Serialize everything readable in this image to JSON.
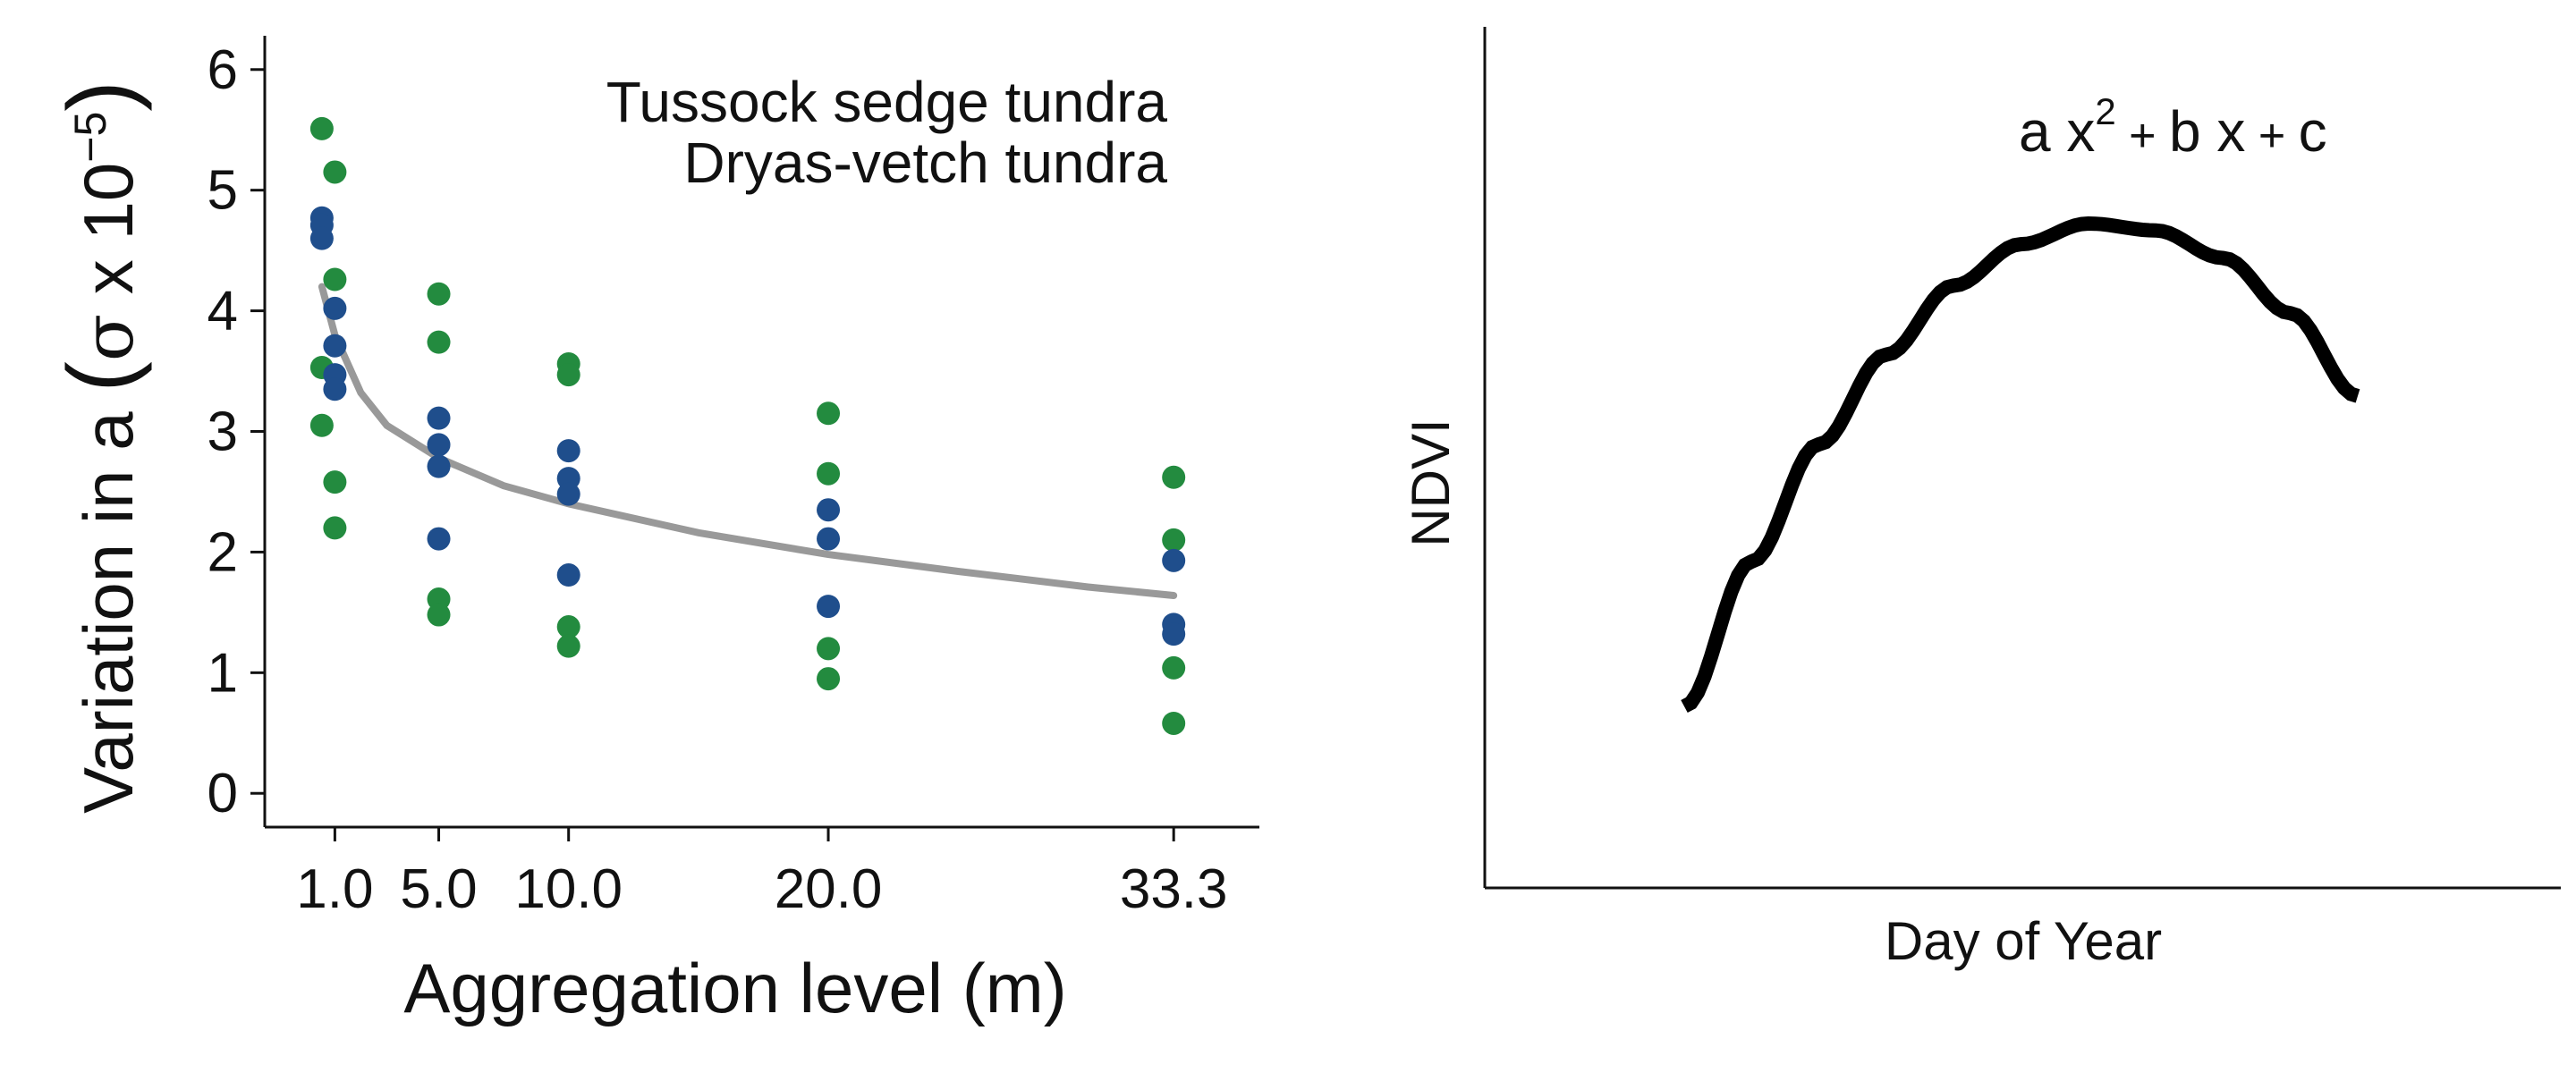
{
  "chart_data": [
    {
      "type": "scatter",
      "title": "",
      "xlabel": "Aggregation level (m)",
      "ylabel_prefix": "Variation in a ",
      "ylabel_paren_open": "(",
      "ylabel_sigma": "σ",
      "ylabel_times": " x 10",
      "ylabel_exponent": "−5",
      "ylabel_paren_close": ")",
      "x_ticks": [
        1.0,
        5.0,
        10.0,
        20.0,
        33.3
      ],
      "x_tick_labels": [
        "1.0",
        "5.0",
        "10.0",
        "20.0",
        "33.3"
      ],
      "y_ticks": [
        0,
        1,
        2,
        3,
        4,
        5,
        6
      ],
      "y_tick_labels": [
        "0",
        "1",
        "2",
        "3",
        "4",
        "5",
        "6"
      ],
      "xlim": [
        -1.7,
        36.6
      ],
      "ylim": [
        -0.28,
        6.28
      ],
      "grid": false,
      "legend_position": "top-right",
      "series": [
        {
          "name": "Tussock sedge tundra",
          "color": "#238b3f",
          "points": [
            [
              0.5,
              5.51
            ],
            [
              1.0,
              5.15
            ],
            [
              1.0,
              4.26
            ],
            [
              0.5,
              3.53
            ],
            [
              0.5,
              3.05
            ],
            [
              1.0,
              2.58
            ],
            [
              1.0,
              2.2
            ],
            [
              5.0,
              4.14
            ],
            [
              5.0,
              3.74
            ],
            [
              5.0,
              1.61
            ],
            [
              5.0,
              1.48
            ],
            [
              10.0,
              3.56
            ],
            [
              10.0,
              3.47
            ],
            [
              10.0,
              1.38
            ],
            [
              10.0,
              1.22
            ],
            [
              20.0,
              3.15
            ],
            [
              20.0,
              2.65
            ],
            [
              20.0,
              1.2
            ],
            [
              20.0,
              0.95
            ],
            [
              33.3,
              2.62
            ],
            [
              33.3,
              2.1
            ],
            [
              33.3,
              1.04
            ],
            [
              33.3,
              0.58
            ]
          ]
        },
        {
          "name": "Dryas-vetch tundra",
          "color": "#1f4e8c",
          "points": [
            [
              0.5,
              4.77
            ],
            [
              0.5,
              4.71
            ],
            [
              0.5,
              4.6
            ],
            [
              1.0,
              4.02
            ],
            [
              1.0,
              3.71
            ],
            [
              1.0,
              3.47
            ],
            [
              1.0,
              3.35
            ],
            [
              5.0,
              3.11
            ],
            [
              5.0,
              2.89
            ],
            [
              5.0,
              2.71
            ],
            [
              5.0,
              2.11
            ],
            [
              10.0,
              2.84
            ],
            [
              10.0,
              2.61
            ],
            [
              10.0,
              2.48
            ],
            [
              10.0,
              1.81
            ],
            [
              20.0,
              2.35
            ],
            [
              20.0,
              2.11
            ],
            [
              20.0,
              1.55
            ],
            [
              33.3,
              1.93
            ],
            [
              33.3,
              1.4
            ],
            [
              33.3,
              1.32
            ]
          ]
        },
        {
          "name": "",
          "kind": "fit",
          "color": "#999999",
          "x": [
            0.5,
            1.0,
            2.0,
            3.0,
            5.0,
            7.5,
            10.0,
            15.0,
            20.0,
            25.0,
            30.0,
            33.3
          ],
          "values": [
            4.2,
            3.8,
            3.32,
            3.05,
            2.78,
            2.55,
            2.4,
            2.16,
            1.98,
            1.84,
            1.71,
            1.64
          ]
        }
      ]
    },
    {
      "type": "line",
      "title": "",
      "xlabel": "Day of Year",
      "ylabel": "NDVI",
      "annotation": {
        "a": "a x",
        "exp": "2",
        "rest_plus1": " + ",
        "b": "b x",
        "rest_plus2": " + ",
        "c": "c"
      },
      "grid": false,
      "series": [
        {
          "name": "",
          "color": "#000000",
          "x": [
            0.0,
            0.1,
            0.2,
            0.3,
            0.4,
            0.5,
            0.6,
            0.7,
            0.8,
            0.9,
            1.0
          ],
          "values": [
            0.3,
            0.51,
            0.68,
            0.81,
            0.91,
            0.97,
            1.0,
            0.99,
            0.95,
            0.87,
            0.75
          ]
        }
      ]
    }
  ]
}
